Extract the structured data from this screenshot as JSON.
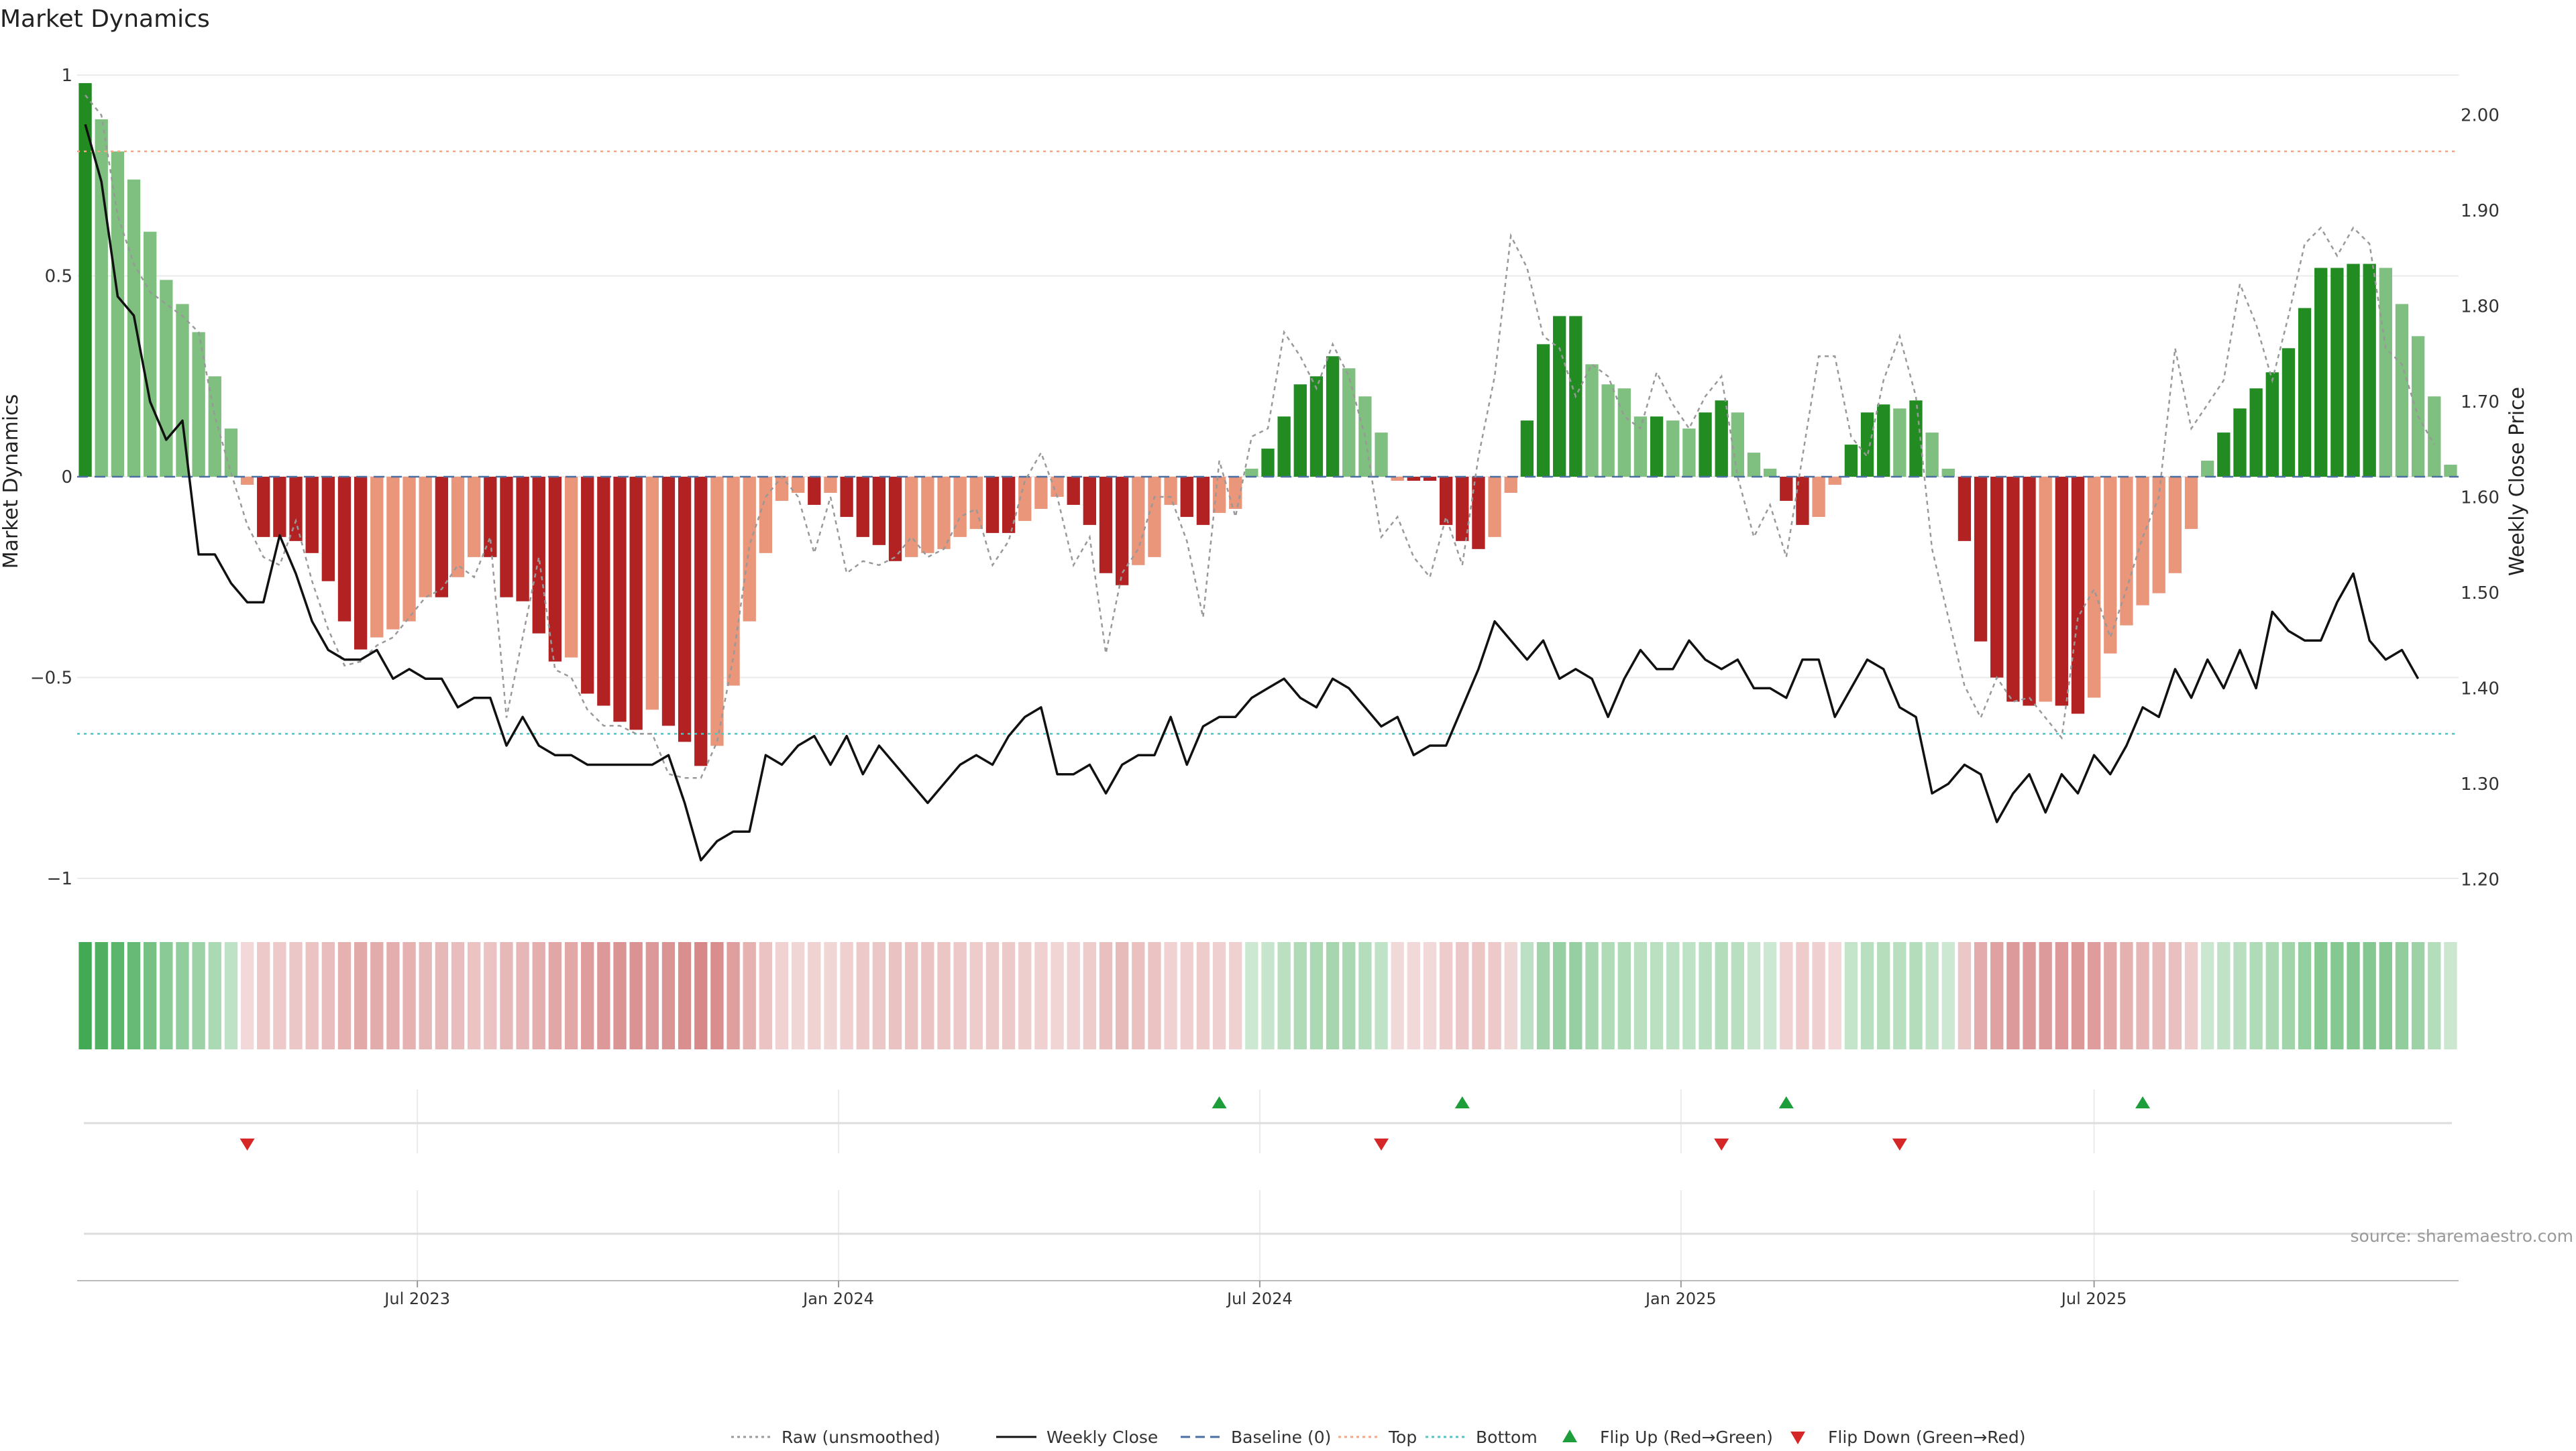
{
  "title": "Market Dynamics",
  "source": "source: sharemaestro.com",
  "colors": {
    "strong_green": "#228B22",
    "light_green": "#7FBF7F",
    "strong_red": "#B22222",
    "light_red": "#E9967A",
    "raw_line": "#999999",
    "close_line": "#111111",
    "baseline": "#4A6FA5",
    "top_line": "#F4A582",
    "bottom_line": "#4EC5C1",
    "flip_up": "#1E9E3A",
    "flip_down": "#D62728",
    "grid": "#EBEBEB"
  },
  "chart_data": {
    "type": "bar",
    "y_left": {
      "label": "Market Dynamics",
      "lim": [
        -1.05,
        1.02
      ],
      "ticks": [
        "1",
        "0.5",
        "0",
        "−0.5",
        "−1"
      ],
      "tick_values": [
        1,
        0.5,
        0,
        -0.5,
        -1
      ]
    },
    "y_right": {
      "label": "Weekly Close Price",
      "lim": [
        1.18,
        2.05
      ],
      "ticks": [
        "2.00",
        "1.90",
        "1.80",
        "1.70",
        "1.60",
        "1.50",
        "1.40",
        "1.30",
        "1.20"
      ],
      "tick_values": [
        2.0,
        1.9,
        1.8,
        1.7,
        1.6,
        1.5,
        1.4,
        1.3,
        1.2
      ]
    },
    "x_ticks": [
      {
        "label": "Jul 2023",
        "week": 20.5
      },
      {
        "label": "Jan 2024",
        "week": 46.5
      },
      {
        "label": "Jul 2024",
        "week": 72.5
      },
      {
        "label": "Jan 2025",
        "week": 98.5
      },
      {
        "label": "Jul 2025",
        "week": 124
      }
    ],
    "levels": {
      "top": 0.81,
      "bottom": -0.64,
      "baseline": 0
    },
    "grid": true,
    "md_values": [
      0.98,
      0.89,
      0.81,
      0.74,
      0.61,
      0.49,
      0.43,
      0.36,
      0.25,
      0.12,
      -0.02,
      -0.15,
      -0.15,
      -0.16,
      -0.19,
      -0.26,
      -0.36,
      -0.43,
      -0.4,
      -0.38,
      -0.36,
      -0.3,
      -0.3,
      -0.25,
      -0.2,
      -0.2,
      -0.3,
      -0.31,
      -0.39,
      -0.46,
      -0.45,
      -0.54,
      -0.57,
      -0.61,
      -0.63,
      -0.58,
      -0.62,
      -0.66,
      -0.72,
      -0.67,
      -0.52,
      -0.36,
      -0.19,
      -0.06,
      -0.04,
      -0.07,
      -0.04,
      -0.1,
      -0.15,
      -0.17,
      -0.21,
      -0.2,
      -0.19,
      -0.18,
      -0.15,
      -0.13,
      -0.14,
      -0.14,
      -0.11,
      -0.08,
      -0.05,
      -0.07,
      -0.12,
      -0.24,
      -0.27,
      -0.22,
      -0.2,
      -0.07,
      -0.1,
      -0.12,
      -0.09,
      -0.08,
      0.02,
      0.07,
      0.15,
      0.23,
      0.25,
      0.3,
      0.27,
      0.2,
      0.11,
      -0.01,
      -0.01,
      -0.01,
      -0.12,
      -0.16,
      -0.18,
      -0.15,
      -0.04,
      0.14,
      0.33,
      0.4,
      0.4,
      0.28,
      0.23,
      0.22,
      0.15,
      0.15,
      0.14,
      0.12,
      0.16,
      0.19,
      0.16,
      0.06,
      0.02,
      -0.06,
      -0.12,
      -0.1,
      -0.02,
      0.08,
      0.16,
      0.18,
      0.17,
      0.19,
      0.11,
      0.02,
      -0.16,
      -0.41,
      -0.5,
      -0.56,
      -0.57,
      -0.56,
      -0.57,
      -0.59,
      -0.55,
      -0.44,
      -0.37,
      -0.32,
      -0.29,
      -0.24,
      -0.13,
      0.04,
      0.11,
      0.17,
      0.22,
      0.26,
      0.32,
      0.42,
      0.52,
      0.52,
      0.53,
      0.53,
      0.52,
      0.43,
      0.35,
      0.2,
      0.03
    ],
    "close_price": [
      1.99,
      1.93,
      1.81,
      1.79,
      1.7,
      1.66,
      1.68,
      1.54,
      1.54,
      1.51,
      1.49,
      1.49,
      1.56,
      1.52,
      1.47,
      1.44,
      1.43,
      1.43,
      1.44,
      1.41,
      1.42,
      1.41,
      1.41,
      1.38,
      1.39,
      1.39,
      1.34,
      1.37,
      1.34,
      1.33,
      1.33,
      1.32,
      1.32,
      1.32,
      1.32,
      1.32,
      1.33,
      1.28,
      1.22,
      1.24,
      1.25,
      1.25,
      1.33,
      1.32,
      1.34,
      1.35,
      1.32,
      1.35,
      1.31,
      1.34,
      1.32,
      1.3,
      1.28,
      1.3,
      1.32,
      1.33,
      1.32,
      1.35,
      1.37,
      1.38,
      1.31,
      1.31,
      1.32,
      1.29,
      1.32,
      1.33,
      1.33,
      1.37,
      1.32,
      1.36,
      1.37,
      1.37,
      1.39,
      1.4,
      1.41,
      1.39,
      1.38,
      1.41,
      1.4,
      1.38,
      1.36,
      1.37,
      1.33,
      1.34,
      1.34,
      1.38,
      1.42,
      1.47,
      1.45,
      1.43,
      1.45,
      1.41,
      1.42,
      1.41,
      1.37,
      1.41,
      1.44,
      1.42,
      1.42,
      1.45,
      1.43,
      1.42,
      1.43,
      1.4,
      1.4,
      1.39,
      1.43,
      1.43,
      1.37,
      1.4,
      1.43,
      1.42,
      1.38,
      1.37,
      1.29,
      1.3,
      1.32,
      1.31,
      1.26,
      1.29,
      1.31,
      1.27,
      1.31,
      1.29,
      1.33,
      1.31,
      1.34,
      1.38,
      1.37,
      1.42,
      1.39,
      1.43,
      1.4,
      1.44,
      1.4,
      1.48,
      1.46,
      1.45,
      1.45,
      1.49,
      1.52,
      1.45,
      1.43,
      1.44,
      1.41
    ],
    "raw_values": [
      0.95,
      0.9,
      0.65,
      0.53,
      0.46,
      0.43,
      0.4,
      0.36,
      0.15,
      0.01,
      -0.12,
      -0.2,
      -0.22,
      -0.11,
      -0.26,
      -0.38,
      -0.47,
      -0.46,
      -0.42,
      -0.4,
      -0.35,
      -0.3,
      -0.28,
      -0.22,
      -0.25,
      -0.15,
      -0.6,
      -0.4,
      -0.2,
      -0.48,
      -0.5,
      -0.58,
      -0.62,
      -0.62,
      -0.64,
      -0.64,
      -0.74,
      -0.75,
      -0.75,
      -0.66,
      -0.45,
      -0.17,
      -0.05,
      0.0,
      -0.05,
      -0.19,
      -0.05,
      -0.24,
      -0.21,
      -0.22,
      -0.2,
      -0.15,
      -0.2,
      -0.18,
      -0.1,
      -0.08,
      -0.22,
      -0.16,
      -0.01,
      0.06,
      -0.05,
      -0.22,
      -0.15,
      -0.44,
      -0.24,
      -0.18,
      -0.05,
      -0.05,
      -0.16,
      -0.35,
      0.04,
      -0.1,
      0.1,
      0.12,
      0.36,
      0.3,
      0.22,
      0.33,
      0.25,
      0.1,
      -0.15,
      -0.1,
      -0.2,
      -0.25,
      -0.1,
      -0.22,
      0.05,
      0.25,
      0.6,
      0.52,
      0.35,
      0.32,
      0.2,
      0.28,
      0.25,
      0.15,
      0.12,
      0.26,
      0.18,
      0.12,
      0.2,
      0.25,
      0.0,
      -0.15,
      -0.07,
      -0.2,
      0.05,
      0.3,
      0.3,
      0.1,
      0.05,
      0.24,
      0.35,
      0.2,
      -0.18,
      -0.35,
      -0.52,
      -0.6,
      -0.5,
      -0.56,
      -0.55,
      -0.6,
      -0.65,
      -0.35,
      -0.28,
      -0.4,
      -0.28,
      -0.15,
      -0.05,
      0.32,
      0.12,
      0.18,
      0.24,
      0.48,
      0.38,
      0.24,
      0.4,
      0.58,
      0.62,
      0.55,
      0.62,
      0.58,
      0.32,
      0.28,
      0.15,
      0.08
    ],
    "flips": [
      {
        "dir": "down",
        "week": 10
      },
      {
        "dir": "up",
        "week": 70
      },
      {
        "dir": "down",
        "week": 80
      },
      {
        "dir": "up",
        "week": 85
      },
      {
        "dir": "down",
        "week": 101
      },
      {
        "dir": "up",
        "week": 105
      },
      {
        "dir": "down",
        "week": 112
      },
      {
        "dir": "up",
        "week": 127
      }
    ],
    "legend": [
      {
        "label": "Raw (unsmoothed)",
        "kind": "dotted-line",
        "color": "#999999"
      },
      {
        "label": "Weekly Close",
        "kind": "solid-line",
        "color": "#111111"
      },
      {
        "label": "Baseline (0)",
        "kind": "dashed-line",
        "color": "#4A6FA5"
      },
      {
        "label": "Top",
        "kind": "dotted-line",
        "color": "#F4A582"
      },
      {
        "label": "Bottom",
        "kind": "dotted-line",
        "color": "#4EC5C1"
      },
      {
        "label": "Flip Up (Red→Green)",
        "kind": "triangle-up",
        "color": "#1E9E3A"
      },
      {
        "label": "Flip Down (Green→Red)",
        "kind": "triangle-down",
        "color": "#D62728"
      }
    ]
  }
}
